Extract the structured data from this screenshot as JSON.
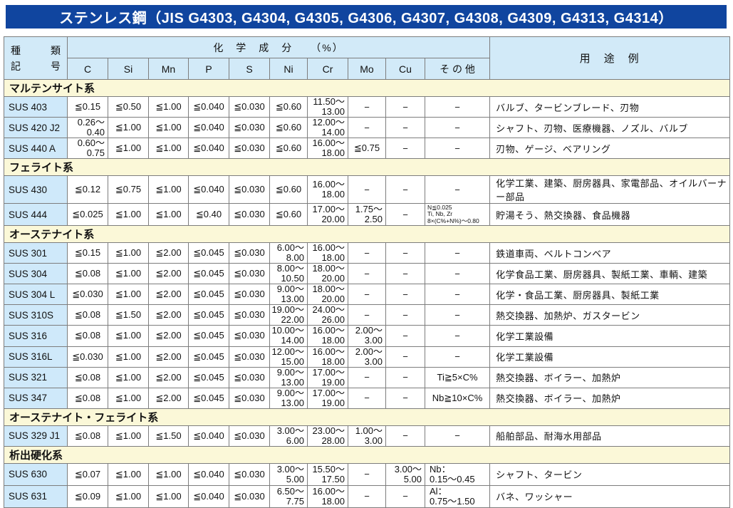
{
  "title": "ステンレス鋼（JIS G4303, G4304, G4305, G4306, G4307, G4308, G4309, G4313, G4314）",
  "colors": {
    "title_bar": "#10459f",
    "header_bg": "#d2eaf8",
    "grade_bg": "#cfe9fa",
    "section_bg": "#fbf8d8",
    "border": "#7d7d7d"
  },
  "table": {
    "header": {
      "kind_top": "種　類",
      "kind_bottom": "記　号",
      "chem_group": "化　学　成　分　　（%）",
      "chem_cols": [
        "C",
        "Si",
        "Mn",
        "P",
        "S",
        "Ni",
        "Cr",
        "Mo",
        "Cu",
        "そ の 他"
      ],
      "usage": "用　途　例"
    },
    "sections": [
      {
        "name": "マルテンサイト系",
        "rows": [
          {
            "grade": "SUS 403",
            "cells": [
              "≦0.15",
              "≦0.50",
              "≦1.00",
              "≦0.040",
              "≦0.030",
              "≦0.60",
              {
                "style": "range",
                "lines": [
                  "11.50〜",
                  "13.00"
                ]
              },
              "−",
              "−",
              "−"
            ],
            "usage": "バルブ、タービンブレード、刃物"
          },
          {
            "grade": "SUS 420 J2",
            "cells": [
              {
                "style": "range",
                "lines": [
                  "0.26〜",
                  "0.40"
                ]
              },
              "≦1.00",
              "≦1.00",
              "≦0.040",
              "≦0.030",
              "≦0.60",
              {
                "style": "range",
                "lines": [
                  "12.00〜",
                  "14.00"
                ]
              },
              "−",
              "−",
              "−"
            ],
            "usage": "シャフト、刃物、医療機器、ノズル、バルブ"
          },
          {
            "grade": "SUS 440 A",
            "cells": [
              {
                "style": "range",
                "lines": [
                  "0.60〜",
                  "0.75"
                ]
              },
              "≦1.00",
              "≦1.00",
              "≦0.040",
              "≦0.030",
              "≦0.60",
              {
                "style": "range",
                "lines": [
                  "16.00〜",
                  "18.00"
                ]
              },
              "≦0.75",
              "−",
              "−"
            ],
            "usage": "刃物、ゲージ、ベアリング"
          }
        ]
      },
      {
        "name": "フェライト系",
        "rows": [
          {
            "grade": "SUS 430",
            "cells": [
              "≦0.12",
              "≦0.75",
              "≦1.00",
              "≦0.040",
              "≦0.030",
              "≦0.60",
              {
                "style": "range",
                "lines": [
                  "16.00〜",
                  "18.00"
                ]
              },
              "−",
              "−",
              "−"
            ],
            "usage": "化学工業、建築、厨房器具、家電部品、オイルバーナー部品"
          },
          {
            "grade": "SUS 444",
            "tall": true,
            "cells": [
              "≦0.025",
              "≦1.00",
              "≦1.00",
              "≦0.40",
              "≦0.030",
              "≦0.60",
              {
                "style": "range",
                "lines": [
                  "17.00〜",
                  "20.00"
                ]
              },
              {
                "style": "range",
                "lines": [
                  "1.75〜",
                  "2.50"
                ]
              },
              "−",
              {
                "style": "note",
                "lines": [
                  "N≦0.025",
                  "Ti, Nb, Zr",
                  "8×(C%+N%)〜0.80"
                ]
              }
            ],
            "usage": "貯湯そう、熱交換器、食品機器"
          }
        ]
      },
      {
        "name": "オーステナイト系",
        "rows": [
          {
            "grade": "SUS 301",
            "cells": [
              "≦0.15",
              "≦1.00",
              "≦2.00",
              "≦0.045",
              "≦0.030",
              {
                "style": "range",
                "lines": [
                  "6.00〜",
                  "8.00"
                ]
              },
              {
                "style": "range",
                "lines": [
                  "16.00〜",
                  "18.00"
                ]
              },
              "−",
              "−",
              "−"
            ],
            "usage": "鉄道車両、ベルトコンベア"
          },
          {
            "grade": "SUS 304",
            "cells": [
              "≦0.08",
              "≦1.00",
              "≦2.00",
              "≦0.045",
              "≦0.030",
              {
                "style": "range",
                "lines": [
                  "8.00〜",
                  "10.50"
                ]
              },
              {
                "style": "range",
                "lines": [
                  "18.00〜",
                  "20.00"
                ]
              },
              "−",
              "−",
              "−"
            ],
            "usage": "化学食品工業、厨房器具、製紙工業、車輌、建築"
          },
          {
            "grade": "SUS 304 L",
            "cells": [
              "≦0.030",
              "≦1.00",
              "≦2.00",
              "≦0.045",
              "≦0.030",
              {
                "style": "range",
                "lines": [
                  "9.00〜",
                  "13.00"
                ]
              },
              {
                "style": "range",
                "lines": [
                  "18.00〜",
                  "20.00"
                ]
              },
              "−",
              "−",
              "−"
            ],
            "usage": "化学・食品工業、厨房器具、製紙工業"
          },
          {
            "grade": "SUS 310S",
            "cells": [
              "≦0.08",
              "≦1.50",
              "≦2.00",
              "≦0.045",
              "≦0.030",
              {
                "style": "range",
                "lines": [
                  "19.00〜",
                  "22.00"
                ]
              },
              {
                "style": "range",
                "lines": [
                  "24.00〜",
                  "26.00"
                ]
              },
              "−",
              "−",
              "−"
            ],
            "usage": "熱交換器、加熱炉、ガスタービン"
          },
          {
            "grade": "SUS 316",
            "cells": [
              "≦0.08",
              "≦1.00",
              "≦2.00",
              "≦0.045",
              "≦0.030",
              {
                "style": "range",
                "lines": [
                  "10.00〜",
                  "14.00"
                ]
              },
              {
                "style": "range",
                "lines": [
                  "16.00〜",
                  "18.00"
                ]
              },
              {
                "style": "range",
                "lines": [
                  "2.00〜",
                  "3.00"
                ]
              },
              "−",
              "−"
            ],
            "usage": "化学工業設備"
          },
          {
            "grade": "SUS 316L",
            "cells": [
              "≦0.030",
              "≦1.00",
              "≦2.00",
              "≦0.045",
              "≦0.030",
              {
                "style": "range",
                "lines": [
                  "12.00〜",
                  "15.00"
                ]
              },
              {
                "style": "range",
                "lines": [
                  "16.00〜",
                  "18.00"
                ]
              },
              {
                "style": "range",
                "lines": [
                  "2.00〜",
                  "3.00"
                ]
              },
              "−",
              "−"
            ],
            "usage": "化学工業設備"
          },
          {
            "grade": "SUS 321",
            "cells": [
              "≦0.08",
              "≦1.00",
              "≦2.00",
              "≦0.045",
              "≦0.030",
              {
                "style": "range",
                "lines": [
                  "9.00〜",
                  "13.00"
                ]
              },
              {
                "style": "range",
                "lines": [
                  "17.00〜",
                  "19.00"
                ]
              },
              "−",
              "−",
              "Ti≧5×C%"
            ],
            "usage": "熱交換器、ボイラー、加熱炉"
          },
          {
            "grade": "SUS 347",
            "cells": [
              "≦0.08",
              "≦1.00",
              "≦2.00",
              "≦0.045",
              "≦0.030",
              {
                "style": "range",
                "lines": [
                  "9.00〜",
                  "13.00"
                ]
              },
              {
                "style": "range",
                "lines": [
                  "17.00〜",
                  "19.00"
                ]
              },
              "−",
              "−",
              "Nb≧10×C%"
            ],
            "usage": "熱交換器、ボイラー、加熱炉"
          }
        ]
      },
      {
        "name": "オーステナイト・フェライト系",
        "rows": [
          {
            "grade": "SUS 329 J1",
            "cells": [
              "≦0.08",
              "≦1.00",
              "≦1.50",
              "≦0.040",
              "≦0.030",
              {
                "style": "range",
                "lines": [
                  "3.00〜",
                  "6.00"
                ]
              },
              {
                "style": "range",
                "lines": [
                  "23.00〜",
                  "28.00"
                ]
              },
              {
                "style": "range",
                "lines": [
                  "1.00〜",
                  "3.00"
                ]
              },
              "−",
              "−"
            ],
            "usage": "船舶部品、耐海水用部品"
          }
        ]
      },
      {
        "name": "析出硬化系",
        "rows": [
          {
            "grade": "SUS 630",
            "tall": true,
            "cells": [
              "≦0.07",
              "≦1.00",
              "≦1.00",
              "≦0.040",
              "≦0.030",
              {
                "style": "range",
                "lines": [
                  "3.00〜",
                  "5.00"
                ]
              },
              {
                "style": "range",
                "lines": [
                  "15.50〜",
                  "17.50"
                ]
              },
              "−",
              {
                "style": "range",
                "lines": [
                  "3.00〜",
                  "5.00"
                ]
              },
              {
                "style": "leftcell",
                "lines": [
                  "Nb：",
                  "0.15〜0.45"
                ]
              }
            ],
            "usage": "シャフト、タービン"
          },
          {
            "grade": "SUS 631",
            "tall": true,
            "cells": [
              "≦0.09",
              "≦1.00",
              "≦1.00",
              "≦0.040",
              "≦0.030",
              {
                "style": "range",
                "lines": [
                  "6.50〜",
                  "7.75"
                ]
              },
              {
                "style": "range",
                "lines": [
                  "16.00〜",
                  "18.00"
                ]
              },
              "−",
              "−",
              {
                "style": "leftcell",
                "lines": [
                  "Al：",
                  "0.75〜1.50"
                ]
              }
            ],
            "usage": "バネ、ワッシャー"
          }
        ]
      }
    ]
  }
}
